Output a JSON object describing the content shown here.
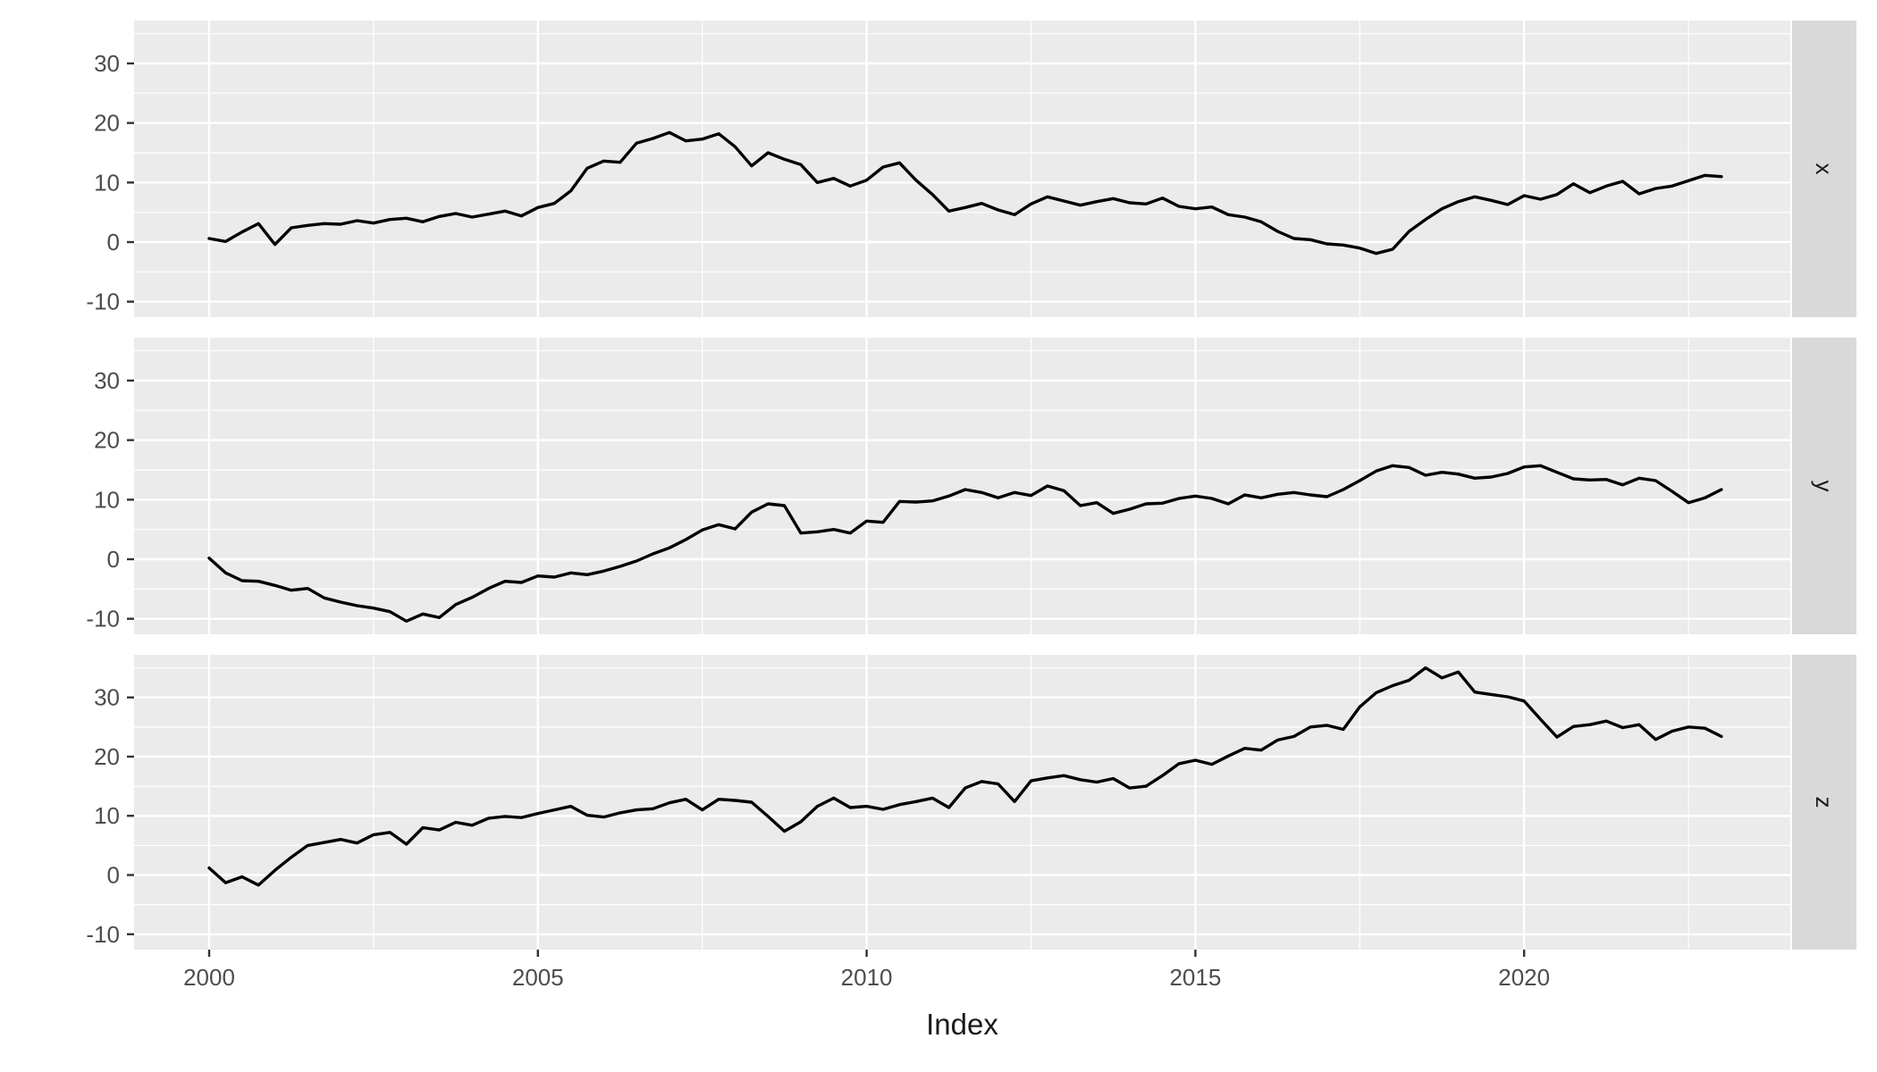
{
  "chart_data": {
    "type": "line",
    "layout": "faceted-rows",
    "title": "",
    "xlabel": "Index",
    "ylabel": "",
    "legend": "none",
    "grid": true,
    "x_ticks": [
      2000,
      2005,
      2010,
      2015,
      2020
    ],
    "x_minor_ticks": [
      2002.5,
      2007.5,
      2012.5,
      2017.5,
      2022.5
    ],
    "y_ticks": [
      -10,
      0,
      10,
      20,
      30
    ],
    "y_minor_ticks": [
      -5,
      5,
      15,
      25,
      35
    ],
    "xlim": [
      1998.9,
      2024.1
    ],
    "ylim": [
      -12.6,
      37.2
    ],
    "panel_bg": "#EBEBEB",
    "strip_bg": "#D9D9D9",
    "grid_color": "#FFFFFF",
    "line_color": "#000000",
    "tick_mark_color": "#333333",
    "tick_text_color": "#4D4D4D",
    "axis_title_color": "#1A1A1A",
    "x_values": [
      2000,
      2000.25,
      2000.5,
      2000.75,
      2001,
      2001.25,
      2001.5,
      2001.75,
      2002,
      2002.25,
      2002.5,
      2002.75,
      2003,
      2003.25,
      2003.5,
      2003.75,
      2004,
      2004.25,
      2004.5,
      2004.75,
      2005,
      2005.25,
      2005.5,
      2005.75,
      2006,
      2006.25,
      2006.5,
      2006.75,
      2007,
      2007.25,
      2007.5,
      2007.75,
      2008,
      2008.25,
      2008.5,
      2008.75,
      2009,
      2009.25,
      2009.5,
      2009.75,
      2010,
      2010.25,
      2010.5,
      2010.75,
      2011,
      2011.25,
      2011.5,
      2011.75,
      2012,
      2012.25,
      2012.5,
      2012.75,
      2013,
      2013.25,
      2013.5,
      2013.75,
      2014,
      2014.25,
      2014.5,
      2014.75,
      2015,
      2015.25,
      2015.5,
      2015.75,
      2016,
      2016.25,
      2016.5,
      2016.75,
      2017,
      2017.25,
      2017.5,
      2017.75,
      2018,
      2018.25,
      2018.5,
      2018.75,
      2019,
      2019.25,
      2019.5,
      2019.75,
      2020,
      2020.25,
      2020.5,
      2020.75,
      2021,
      2021.25,
      2021.5,
      2021.75,
      2022,
      2022.25,
      2022.5,
      2022.75,
      2023
    ],
    "facets": [
      {
        "label": "x",
        "values": [
          0.6,
          0.1,
          1.7,
          3.1,
          -0.4,
          2.4,
          2.8,
          3.1,
          3.0,
          3.6,
          3.2,
          3.8,
          4.0,
          3.4,
          4.3,
          4.8,
          4.2,
          4.7,
          5.2,
          4.4,
          5.8,
          6.5,
          8.6,
          12.4,
          13.6,
          13.4,
          16.6,
          17.4,
          18.4,
          17.0,
          17.3,
          18.2,
          16.0,
          12.8,
          15.0,
          13.9,
          13.0,
          10.0,
          10.7,
          9.4,
          10.4,
          12.6,
          13.3,
          10.4,
          8.0,
          5.2,
          5.8,
          6.5,
          5.4,
          4.6,
          6.4,
          7.6,
          6.9,
          6.2,
          6.8,
          7.3,
          6.6,
          6.4,
          7.4,
          6.0,
          5.6,
          5.9,
          4.6,
          4.2,
          3.4,
          1.8,
          0.6,
          0.4,
          -0.3,
          -0.5,
          -1.0,
          -1.9,
          -1.2,
          1.8,
          3.8,
          5.6,
          6.8,
          7.6,
          7.0,
          6.3,
          7.8,
          7.2,
          8.0,
          9.8,
          8.3,
          9.4,
          10.2,
          8.1,
          9.0,
          9.4,
          10.3,
          11.2,
          11.0
        ]
      },
      {
        "label": "y",
        "values": [
          0.2,
          -2.3,
          -3.6,
          -3.7,
          -4.4,
          -5.2,
          -4.9,
          -6.5,
          -7.2,
          -7.8,
          -8.2,
          -8.8,
          -10.4,
          -9.2,
          -9.8,
          -7.6,
          -6.4,
          -4.9,
          -3.7,
          -3.9,
          -2.8,
          -3.0,
          -2.3,
          -2.6,
          -2.0,
          -1.2,
          -0.3,
          0.9,
          1.9,
          3.3,
          4.9,
          5.8,
          5.1,
          7.9,
          9.3,
          9.0,
          4.4,
          4.6,
          5.0,
          4.4,
          6.4,
          6.2,
          9.7,
          9.6,
          9.8,
          10.6,
          11.7,
          11.2,
          10.3,
          11.2,
          10.7,
          12.3,
          11.5,
          9.0,
          9.5,
          7.7,
          8.4,
          9.3,
          9.4,
          10.2,
          10.6,
          10.2,
          9.3,
          10.8,
          10.3,
          10.9,
          11.2,
          10.8,
          10.5,
          11.7,
          13.2,
          14.8,
          15.7,
          15.4,
          14.1,
          14.6,
          14.3,
          13.6,
          13.8,
          14.4,
          15.5,
          15.7,
          14.6,
          13.5,
          13.3,
          13.4,
          12.5,
          13.6,
          13.2,
          11.4,
          9.5,
          10.3,
          11.7
        ]
      },
      {
        "label": "z",
        "values": [
          1.2,
          -1.3,
          -0.3,
          -1.7,
          0.8,
          3.0,
          5.0,
          5.5,
          6.0,
          5.4,
          6.8,
          7.2,
          5.2,
          8.0,
          7.6,
          8.9,
          8.4,
          9.6,
          9.9,
          9.7,
          10.4,
          11.0,
          11.6,
          10.1,
          9.8,
          10.5,
          11.0,
          11.2,
          12.2,
          12.8,
          11.0,
          12.8,
          12.6,
          12.3,
          9.9,
          7.4,
          9.0,
          11.6,
          13.0,
          11.4,
          11.6,
          11.1,
          11.9,
          12.4,
          13.0,
          11.4,
          14.7,
          15.8,
          15.4,
          12.4,
          15.9,
          16.4,
          16.8,
          16.1,
          15.7,
          16.3,
          14.7,
          15.0,
          16.8,
          18.8,
          19.4,
          18.7,
          20.1,
          21.4,
          21.1,
          22.8,
          23.4,
          25.0,
          25.3,
          24.6,
          28.4,
          30.8,
          32.0,
          32.9,
          35.0,
          33.3,
          34.3,
          30.9,
          30.5,
          30.1,
          29.4,
          26.3,
          23.3,
          25.1,
          25.4,
          26.0,
          24.9,
          25.4,
          22.9,
          24.3,
          25.0,
          24.8,
          23.4
        ]
      }
    ]
  }
}
